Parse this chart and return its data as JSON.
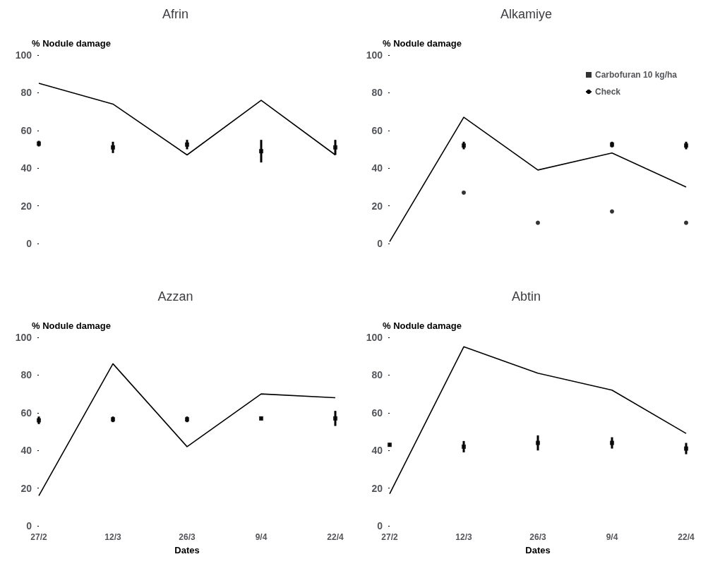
{
  "chart_data": [
    {
      "type": "line",
      "title": "Afrin",
      "ylabel": "% Nodule damage",
      "categories": [
        null,
        null,
        null,
        null,
        null
      ],
      "ylim": [
        0,
        100
      ],
      "yticks": [
        0,
        20,
        40,
        60,
        80,
        100
      ],
      "tick_labels": "y",
      "grid": false,
      "legend": false,
      "series": [
        {
          "color": "#000000",
          "marker": "none",
          "line_style": "solid",
          "values": [
            85,
            74,
            47,
            76,
            47
          ]
        },
        {
          "type": "scatter",
          "color": "#000000",
          "marker": "square",
          "values": [
            53,
            51,
            52.5,
            49,
            51
          ],
          "errors": [
            1.5,
            3,
            2.5,
            6,
            4
          ]
        }
      ]
    },
    {
      "type": "line",
      "title": "Alkamiye",
      "ylabel": "% Nodule damage",
      "categories": [
        null,
        null,
        null,
        null,
        null
      ],
      "ylim": [
        0,
        100
      ],
      "yticks": [
        0,
        20,
        40,
        60,
        80,
        100
      ],
      "tick_labels": "y",
      "grid": false,
      "legend": "top right",
      "series": [
        {
          "type": "scatter",
          "name": "Carbofuran 10 kg/ha",
          "color": "#000000",
          "marker": "square",
          "values": [
            null,
            52,
            null,
            52.5,
            52
          ],
          "errors": [
            null,
            2,
            null,
            1.5,
            2
          ]
        },
        {
          "type": "scatter",
          "color": "#000000",
          "marker": "circle",
          "values": [
            null,
            27,
            11,
            17,
            11
          ]
        },
        {
          "name": "Check",
          "color": "#000000",
          "marker": "none",
          "line_style": "solid",
          "values": [
            1,
            67,
            39,
            48,
            30
          ]
        }
      ]
    },
    {
      "type": "line",
      "title": "Azzan",
      "ylabel": "% Nodule damage",
      "xlabel": "Dates",
      "categories": [
        "27/2",
        "12/3",
        "26/3",
        "9/4",
        "22/4"
      ],
      "ylim": [
        0,
        100
      ],
      "yticks": [
        0,
        20,
        40,
        60,
        80,
        100
      ],
      "grid": false,
      "legend": false,
      "series": [
        {
          "color": "#000000",
          "marker": "none",
          "line_style": "solid",
          "values": [
            16,
            86,
            42,
            70,
            68
          ]
        },
        {
          "type": "scatter",
          "color": "#000000",
          "marker": "square",
          "values": [
            56,
            56.5,
            56.5,
            57,
            57
          ],
          "errors": [
            2,
            1.5,
            1.5,
            1,
            4
          ]
        }
      ]
    },
    {
      "type": "line",
      "title": "Abtin",
      "ylabel": "% Nodule damage",
      "xlabel": "Dates",
      "categories": [
        "27/2",
        "12/3",
        "26/3",
        "9/4",
        "22/4"
      ],
      "ylim": [
        0,
        100
      ],
      "yticks": [
        0,
        20,
        40,
        60,
        80,
        100
      ],
      "grid": false,
      "legend": false,
      "series": [
        {
          "color": "#000000",
          "marker": "none",
          "line_style": "solid",
          "values": [
            17,
            95,
            81,
            72,
            49
          ]
        },
        {
          "type": "scatter",
          "color": "#000000",
          "marker": "square",
          "values": [
            43,
            42,
            44,
            44,
            41
          ],
          "errors": [
            1,
            3,
            4,
            3,
            3
          ]
        }
      ]
    }
  ]
}
